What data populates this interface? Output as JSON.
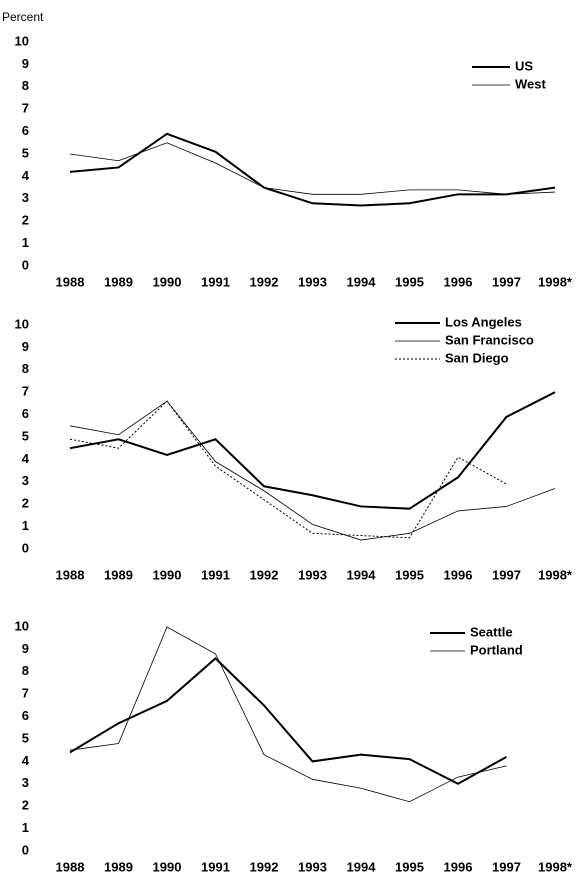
{
  "chart_data": [
    {
      "type": "line",
      "y_label": "Percent",
      "categories": [
        "1988",
        "1989",
        "1990",
        "1991",
        "1992",
        "1993",
        "1994",
        "1995",
        "1996",
        "1997",
        "1998*"
      ],
      "ylim": [
        0,
        10
      ],
      "yticks": [
        0,
        1,
        2,
        3,
        4,
        5,
        6,
        7,
        8,
        9,
        10
      ],
      "grid": false,
      "legend": "upper right",
      "series": [
        {
          "name": "US",
          "color": "#000000",
          "linewidth": 2,
          "linestyle": "solid",
          "values": [
            4.2,
            4.4,
            5.9,
            5.1,
            3.5,
            2.8,
            2.7,
            2.8,
            3.2,
            3.2,
            3.5
          ]
        },
        {
          "name": "West",
          "color": "#000000",
          "linewidth": 0.8,
          "linestyle": "solid",
          "values": [
            5.0,
            4.7,
            5.5,
            4.6,
            3.5,
            3.2,
            3.2,
            3.4,
            3.4,
            3.2,
            3.3
          ]
        }
      ]
    },
    {
      "type": "line",
      "categories": [
        "1988",
        "1989",
        "1990",
        "1991",
        "1992",
        "1993",
        "1994",
        "1995",
        "1996",
        "1997",
        "1998*"
      ],
      "ylim": [
        0,
        10
      ],
      "yticks": [
        0,
        1,
        2,
        3,
        4,
        5,
        6,
        7,
        8,
        9,
        10
      ],
      "grid": false,
      "legend": "upper right",
      "series": [
        {
          "name": "Los Angeles",
          "color": "#000000",
          "linewidth": 2,
          "linestyle": "solid",
          "values": [
            4.5,
            4.9,
            4.2,
            4.9,
            2.8,
            2.4,
            1.9,
            1.8,
            3.2,
            5.9,
            7.0
          ]
        },
        {
          "name": "San Francisco",
          "color": "#000000",
          "linewidth": 0.8,
          "linestyle": "solid",
          "values": [
            5.5,
            5.1,
            6.6,
            3.9,
            2.6,
            1.1,
            0.4,
            0.7,
            1.7,
            1.9,
            2.7
          ]
        },
        {
          "name": "San Diego",
          "color": "#000000",
          "linewidth": 1,
          "linestyle": "dotted",
          "values": [
            4.9,
            4.5,
            6.6,
            3.7,
            2.2,
            0.7,
            0.6,
            0.5,
            4.1,
            2.9,
            null
          ]
        }
      ]
    },
    {
      "type": "line",
      "categories": [
        "1988",
        "1989",
        "1990",
        "1991",
        "1992",
        "1993",
        "1994",
        "1995",
        "1996",
        "1997",
        "1998*"
      ],
      "ylim": [
        0,
        10
      ],
      "yticks": [
        0,
        1,
        2,
        3,
        4,
        5,
        6,
        7,
        8,
        9,
        10
      ],
      "grid": false,
      "legend": "upper right",
      "series": [
        {
          "name": "Seattle",
          "color": "#000000",
          "linewidth": 2,
          "linestyle": "solid",
          "values": [
            4.4,
            5.7,
            6.7,
            8.6,
            6.5,
            4.0,
            4.3,
            4.1,
            3.0,
            4.2,
            null
          ]
        },
        {
          "name": "Portland",
          "color": "#000000",
          "linewidth": 0.8,
          "linestyle": "solid",
          "values": [
            4.5,
            4.8,
            10.0,
            8.8,
            4.3,
            3.2,
            2.8,
            2.2,
            3.3,
            3.8,
            null
          ]
        }
      ]
    }
  ]
}
